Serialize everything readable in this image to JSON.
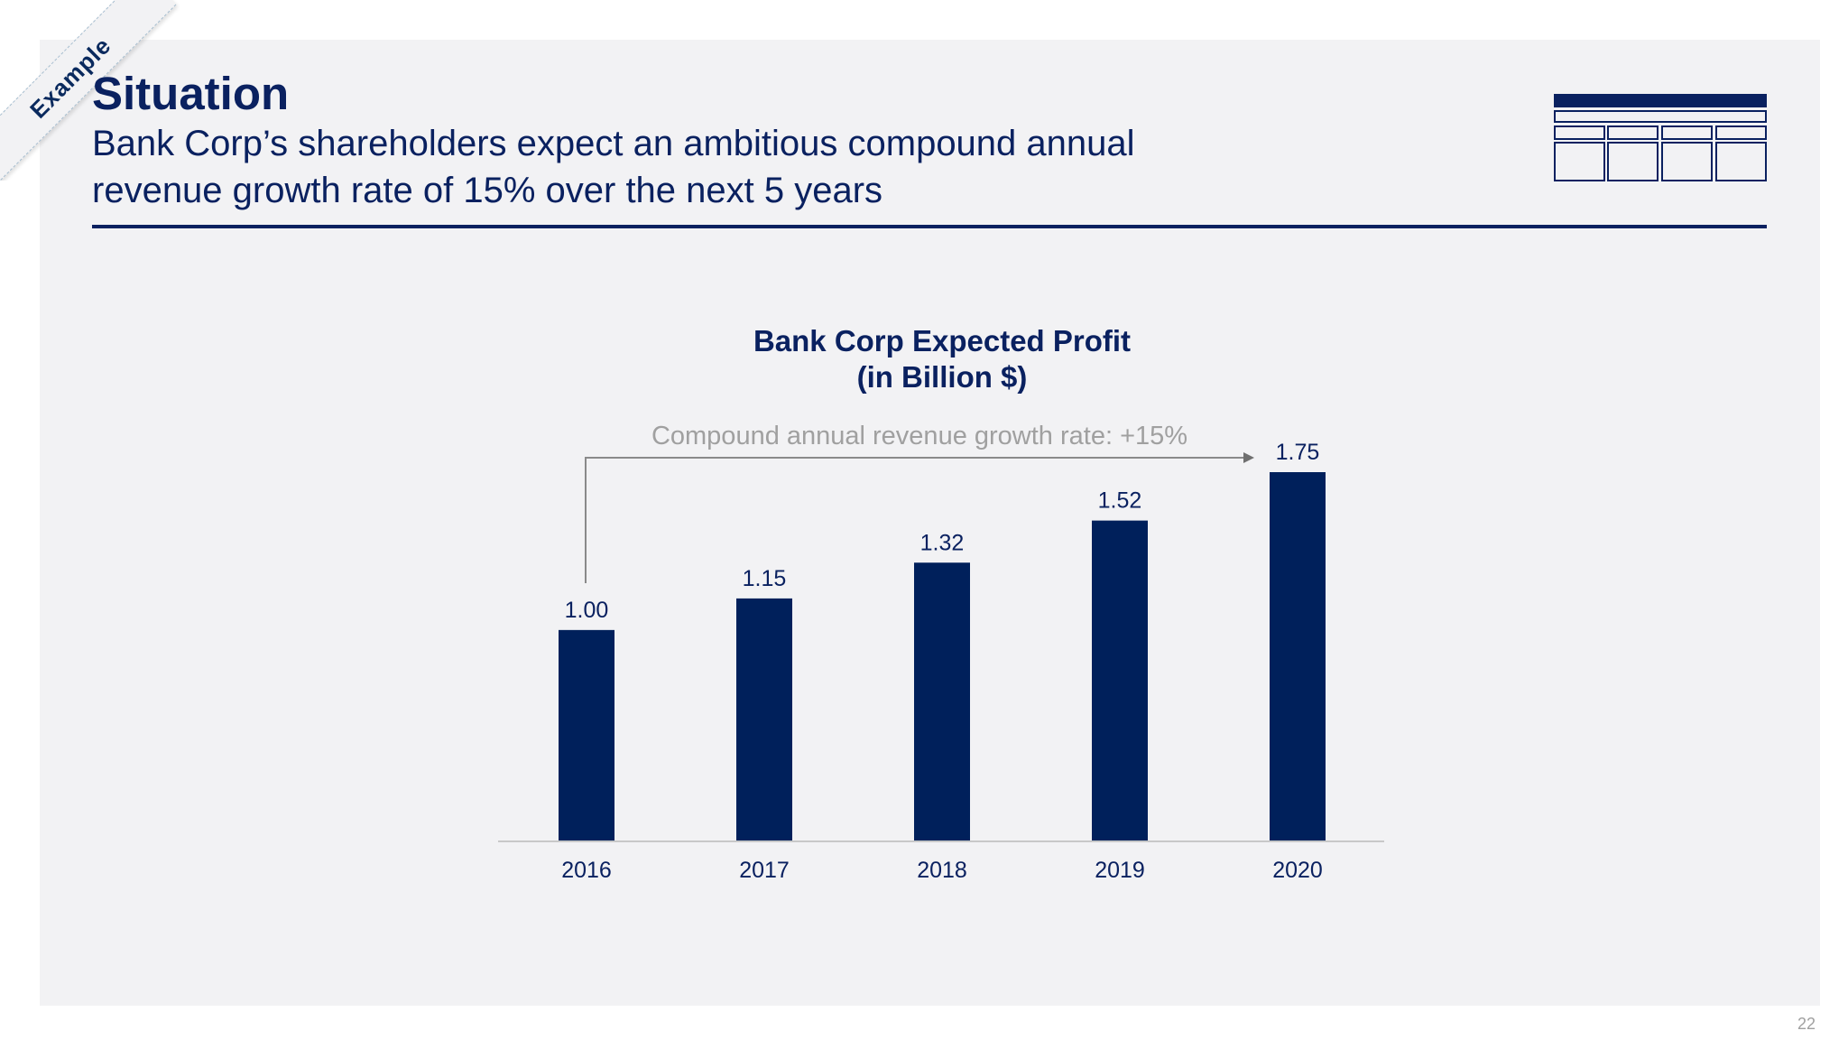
{
  "badge": "Example",
  "header": {
    "title": "Situation",
    "subtitle_line1": "Bank Corp’s shareholders expect an ambitious compound annual",
    "subtitle_line2": "revenue growth rate of 15% over the next 5 years"
  },
  "annotation": "Compound annual revenue growth rate: +15%",
  "page_number": "22",
  "colors": {
    "primary": "#0a2160",
    "bar": "#00205b",
    "background": "#f2f2f4",
    "annotation": "#a0a0a0"
  },
  "icon": "table-icon",
  "chart_data": {
    "type": "bar",
    "title_line1": "Bank Corp Expected Profit",
    "title_line2": "(in Billion $)",
    "categories": [
      "2016",
      "2017",
      "2018",
      "2019",
      "2020"
    ],
    "values": [
      1.0,
      1.15,
      1.32,
      1.52,
      1.75
    ],
    "value_labels": [
      "1.00",
      "1.15",
      "1.32",
      "1.52",
      "1.75"
    ],
    "ylim": [
      0,
      1.75
    ],
    "xlabel": "",
    "ylabel": "",
    "grid": false,
    "legend": "none"
  }
}
